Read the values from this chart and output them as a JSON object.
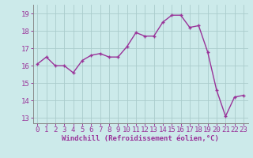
{
  "x": [
    0,
    1,
    2,
    3,
    4,
    5,
    6,
    7,
    8,
    9,
    10,
    11,
    12,
    13,
    14,
    15,
    16,
    17,
    18,
    19,
    20,
    21,
    22,
    23
  ],
  "y": [
    16.1,
    16.5,
    16.0,
    16.0,
    15.6,
    16.3,
    16.6,
    16.7,
    16.5,
    16.5,
    17.1,
    17.9,
    17.7,
    17.7,
    18.5,
    18.9,
    18.9,
    18.2,
    18.3,
    16.8,
    14.6,
    13.1,
    14.2,
    14.3
  ],
  "line_color": "#993399",
  "marker": "+",
  "marker_size": 3.5,
  "bg_color": "#cceaea",
  "grid_color": "#aacccc",
  "xlabel": "Windchill (Refroidissement éolien,°C)",
  "ylim": [
    12.7,
    19.5
  ],
  "xlim": [
    -0.5,
    23.5
  ],
  "yticks": [
    13,
    14,
    15,
    16,
    17,
    18,
    19
  ],
  "xticks": [
    0,
    1,
    2,
    3,
    4,
    5,
    6,
    7,
    8,
    9,
    10,
    11,
    12,
    13,
    14,
    15,
    16,
    17,
    18,
    19,
    20,
    21,
    22,
    23
  ],
  "xlabel_fontsize": 6.5,
  "tick_fontsize": 6.5,
  "line_width": 1.0
}
